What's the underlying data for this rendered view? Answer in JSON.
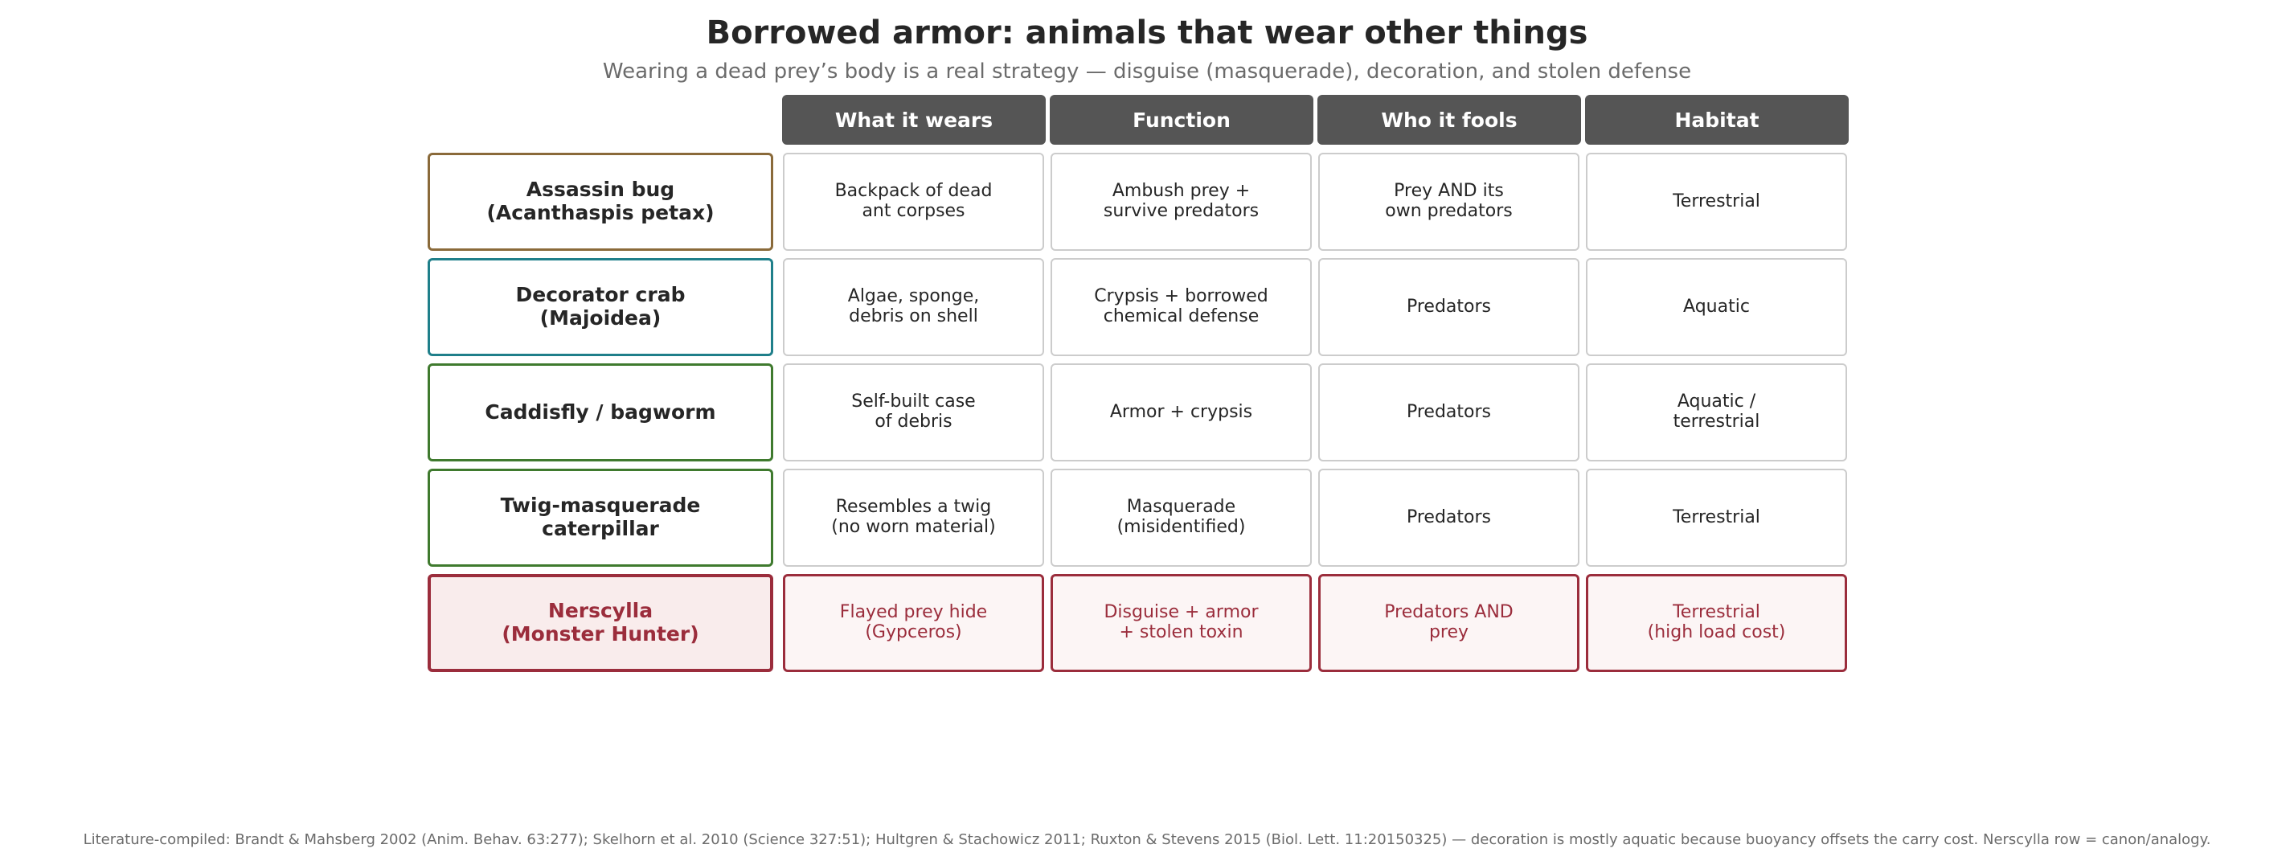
{
  "title": "Borrowed armor: animals that wear other things",
  "subtitle": "Wearing a dead prey’s body is a real strategy — disguise (masquerade), decoration, and stolen defense",
  "columns": [
    "What it wears",
    "Function",
    "Who it fools",
    "Habitat"
  ],
  "rows": [
    {
      "name": "Assassin bug\n(Acanthaspis petax)",
      "accent": "#8a6a3a",
      "cells": [
        "Backpack of dead\nant corpses",
        "Ambush prey +\nsurvive predators",
        "Prey AND its\nown predators",
        "Terrestrial"
      ]
    },
    {
      "name": "Decorator crab\n(Majoidea)",
      "accent": "#1f7f8a",
      "cells": [
        "Algae, sponge,\ndebris on shell",
        "Crypsis + borrowed\nchemical defense",
        "Predators",
        "Aquatic"
      ]
    },
    {
      "name": "Caddisfly / bagworm",
      "accent": "#3f7a2e",
      "cells": [
        "Self-built case\nof debris",
        "Armor + crypsis",
        "Predators",
        "Aquatic /\nterrestrial"
      ]
    },
    {
      "name": "Twig-masquerade\ncaterpillar",
      "accent": "#3f7a2e",
      "cells": [
        "Resembles a twig\n(no worn material)",
        "Masquerade\n(misidentified)",
        "Predators",
        "Terrestrial"
      ]
    },
    {
      "name": "Nerscylla\n(Monster Hunter)",
      "accent": "#9b2d3c",
      "highlight": true,
      "cells": [
        "Flayed prey hide\n(Gypceros)",
        "Disguise + armor\n+ stolen toxin",
        "Predators AND\nprey",
        "Terrestrial\n(high load cost)"
      ]
    }
  ],
  "footnote": "Literature-compiled: Brandt & Mahsberg 2002 (Anim. Behav. 63:277); Skelhorn et al. 2010 (Science 327:51); Hultgren & Stachowicz 2011; Ruxton & Stevens 2015 (Biol. Lett. 11:20150325) — decoration is mostly aquatic because buoyancy offsets the carry cost. Nerscylla row = canon/analogy."
}
